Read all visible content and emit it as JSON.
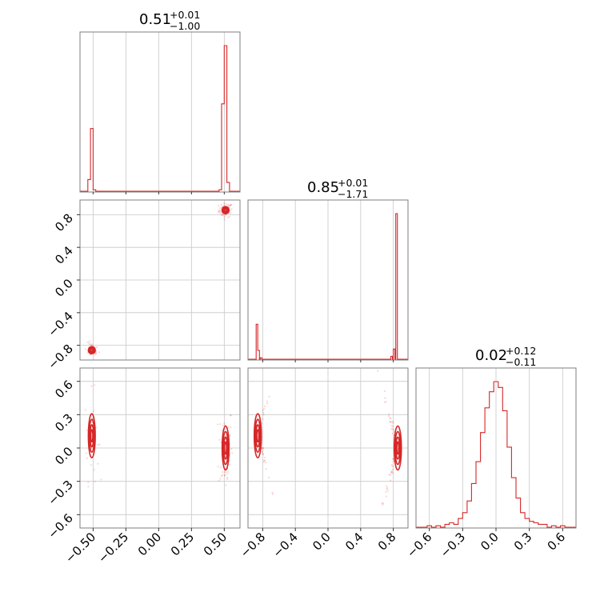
{
  "chart_data": {
    "type": "corner",
    "color": "#d62728",
    "params": [
      {
        "median": "0.51",
        "plus": "+0.01",
        "minus": "−1.00"
      },
      {
        "median": "0.85",
        "plus": "+0.01",
        "minus": "−1.71"
      },
      {
        "median": "0.02",
        "plus": "+0.12",
        "minus": "−0.11"
      }
    ],
    "axes": [
      {
        "range": [
          -0.6,
          0.62
        ],
        "ticks": [
          -0.5,
          -0.25,
          0.0,
          0.25,
          0.5
        ],
        "tick_labels": [
          "−0.50",
          "−0.25",
          "0.00",
          "0.25",
          "0.50"
        ]
      },
      {
        "range": [
          -0.98,
          0.98
        ],
        "ticks": [
          -0.8,
          -0.4,
          0.0,
          0.4,
          0.8
        ],
        "tick_labels": [
          "−0.8",
          "−0.4",
          "0.0",
          "0.4",
          "0.8"
        ]
      },
      {
        "range": [
          -0.72,
          0.72
        ],
        "ticks": [
          -0.6,
          -0.3,
          0.0,
          0.3,
          0.6
        ],
        "tick_labels": [
          "−0.6",
          "−0.3",
          "0.0",
          "0.3",
          "0.6"
        ]
      }
    ],
    "histograms": [
      {
        "x": [
          -0.53,
          -0.51,
          -0.49,
          0.47,
          0.49,
          0.51,
          0.53
        ],
        "y": [
          0.08,
          0.43,
          0.01,
          0.01,
          0.6,
          1.0,
          0.06
        ]
      },
      {
        "x": [
          -0.87,
          -0.85,
          -0.82,
          0.78,
          0.81,
          0.84
        ],
        "y": [
          0.24,
          0.06,
          0.01,
          0.02,
          0.07,
          1.0
        ]
      },
      {
        "x": [
          -0.68,
          -0.6,
          -0.52,
          -0.44,
          -0.4,
          -0.36,
          -0.32,
          -0.28,
          -0.24,
          -0.2,
          -0.16,
          -0.12,
          -0.08,
          -0.04,
          0.0,
          0.04,
          0.08,
          0.12,
          0.16,
          0.2,
          0.24,
          0.28,
          0.32,
          0.36,
          0.4,
          0.44,
          0.52,
          0.6,
          0.68
        ],
        "y": [
          0.0,
          0.01,
          0.01,
          0.02,
          0.03,
          0.02,
          0.06,
          0.1,
          0.18,
          0.3,
          0.45,
          0.65,
          0.82,
          0.93,
          1.0,
          0.96,
          0.8,
          0.55,
          0.34,
          0.2,
          0.1,
          0.06,
          0.04,
          0.03,
          0.02,
          0.02,
          0.01,
          0.01,
          0.0
        ]
      }
    ],
    "modes": [
      {
        "p1": 0.51,
        "p2": 0.855,
        "p3": 0.0
      },
      {
        "p1": -0.51,
        "p2": -0.86,
        "p3": 0.11
      }
    ]
  }
}
